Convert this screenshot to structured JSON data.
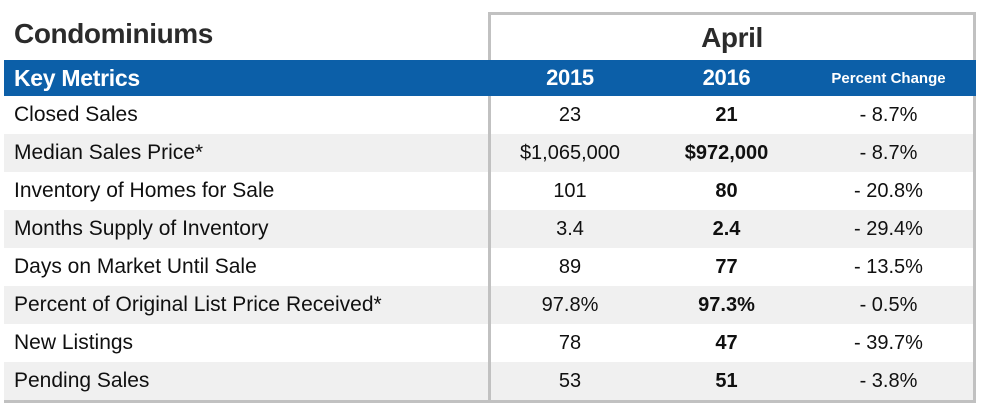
{
  "report": {
    "section_title": "Condominiums",
    "period": "April"
  },
  "table": {
    "header": {
      "metrics_label": "Key Metrics",
      "year_left": "2015",
      "year_right": "2016",
      "change_label": "Percent Change"
    },
    "rows": [
      {
        "label": "Closed Sales",
        "y2015": "23",
        "y2016": "21",
        "change": "- 8.7%"
      },
      {
        "label": "Median Sales Price*",
        "y2015": "$1,065,000",
        "y2016": "$972,000",
        "change": "- 8.7%"
      },
      {
        "label": "Inventory of Homes for Sale",
        "y2015": "101",
        "y2016": "80",
        "change": "- 20.8%"
      },
      {
        "label": "Months Supply of Inventory",
        "y2015": "3.4",
        "y2016": "2.4",
        "change": "- 29.4%"
      },
      {
        "label": "Days on Market Until Sale",
        "y2015": "89",
        "y2016": "77",
        "change": "- 13.5%"
      },
      {
        "label": "Percent of Original List Price Received*",
        "y2015": "97.8%",
        "y2016": "97.3%",
        "change": "- 0.5%"
      },
      {
        "label": "New Listings",
        "y2015": "78",
        "y2016": "47",
        "change": "- 39.7%"
      },
      {
        "label": "Pending Sales",
        "y2015": "53",
        "y2016": "51",
        "change": "- 3.8%"
      }
    ],
    "colors": {
      "header_blue": "#0c5fa8",
      "alt_row_gray": "#f0f0f0",
      "border_gray": "#c1c1c1",
      "title_text": "#2b2b2b"
    }
  }
}
